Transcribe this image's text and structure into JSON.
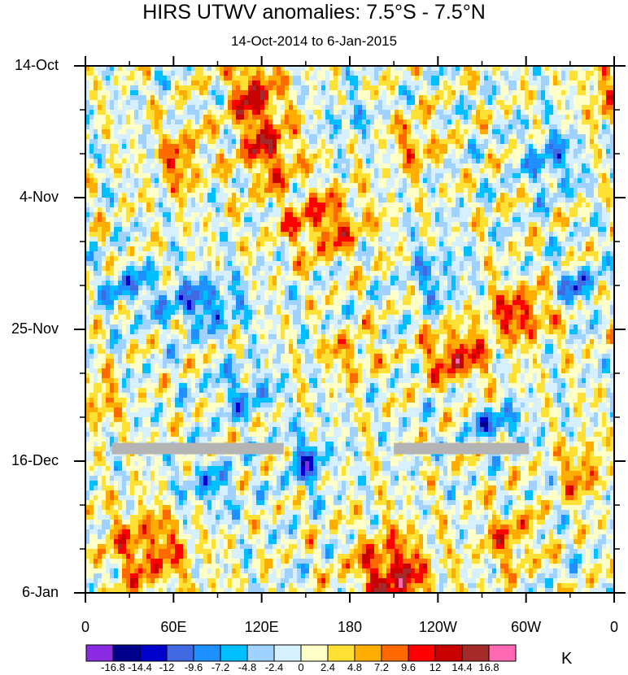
{
  "chart_data": {
    "type": "heatmap",
    "title": "HIRS UTWV anomalies: 7.5°S - 7.5°N",
    "subtitle": "14-Oct-2014 to 6-Jan-2015",
    "xlabel": "",
    "ylabel": "",
    "x_ticks": [
      {
        "lon": 0,
        "label": "0"
      },
      {
        "lon": 60,
        "label": "60E"
      },
      {
        "lon": 120,
        "label": "120E"
      },
      {
        "lon": 180,
        "label": "180"
      },
      {
        "lon": 240,
        "label": "120W"
      },
      {
        "lon": 300,
        "label": "60W"
      },
      {
        "lon": 360,
        "label": "0"
      }
    ],
    "y_ticks": [
      {
        "day": 0,
        "label": "14-Oct"
      },
      {
        "day": 21,
        "label": "4-Nov"
      },
      {
        "day": 42,
        "label": "25-Nov"
      },
      {
        "day": 63,
        "label": "16-Dec"
      },
      {
        "day": 84,
        "label": "6-Jan"
      }
    ],
    "xlim": [
      0,
      360
    ],
    "ylim_days": [
      0,
      84
    ],
    "colorbar": {
      "units": "K",
      "levels": [
        "-16.8",
        "-14.4",
        "-12",
        "-9.6",
        "-7.2",
        "-4.8",
        "-2.4",
        "0",
        "2.4",
        "4.8",
        "7.2",
        "9.6",
        "12",
        "14.4",
        "16.8"
      ],
      "colors": [
        "#8a2be2",
        "#00008b",
        "#0000cd",
        "#4169e1",
        "#1e90ff",
        "#00bfff",
        "#a0d2ff",
        "#d6f0ff",
        "#ffffc8",
        "#ffe135",
        "#ffad00",
        "#ff6a00",
        "#ff0000",
        "#c80000",
        "#a52a2a",
        "#ff69b4"
      ]
    },
    "missing_segments": [
      {
        "lon_start": 18,
        "lon_end": 135,
        "day": 61
      },
      {
        "lon_start": 210,
        "lon_end": 302,
        "day": 61
      }
    ],
    "missing_color": "#b4b4b4"
  }
}
